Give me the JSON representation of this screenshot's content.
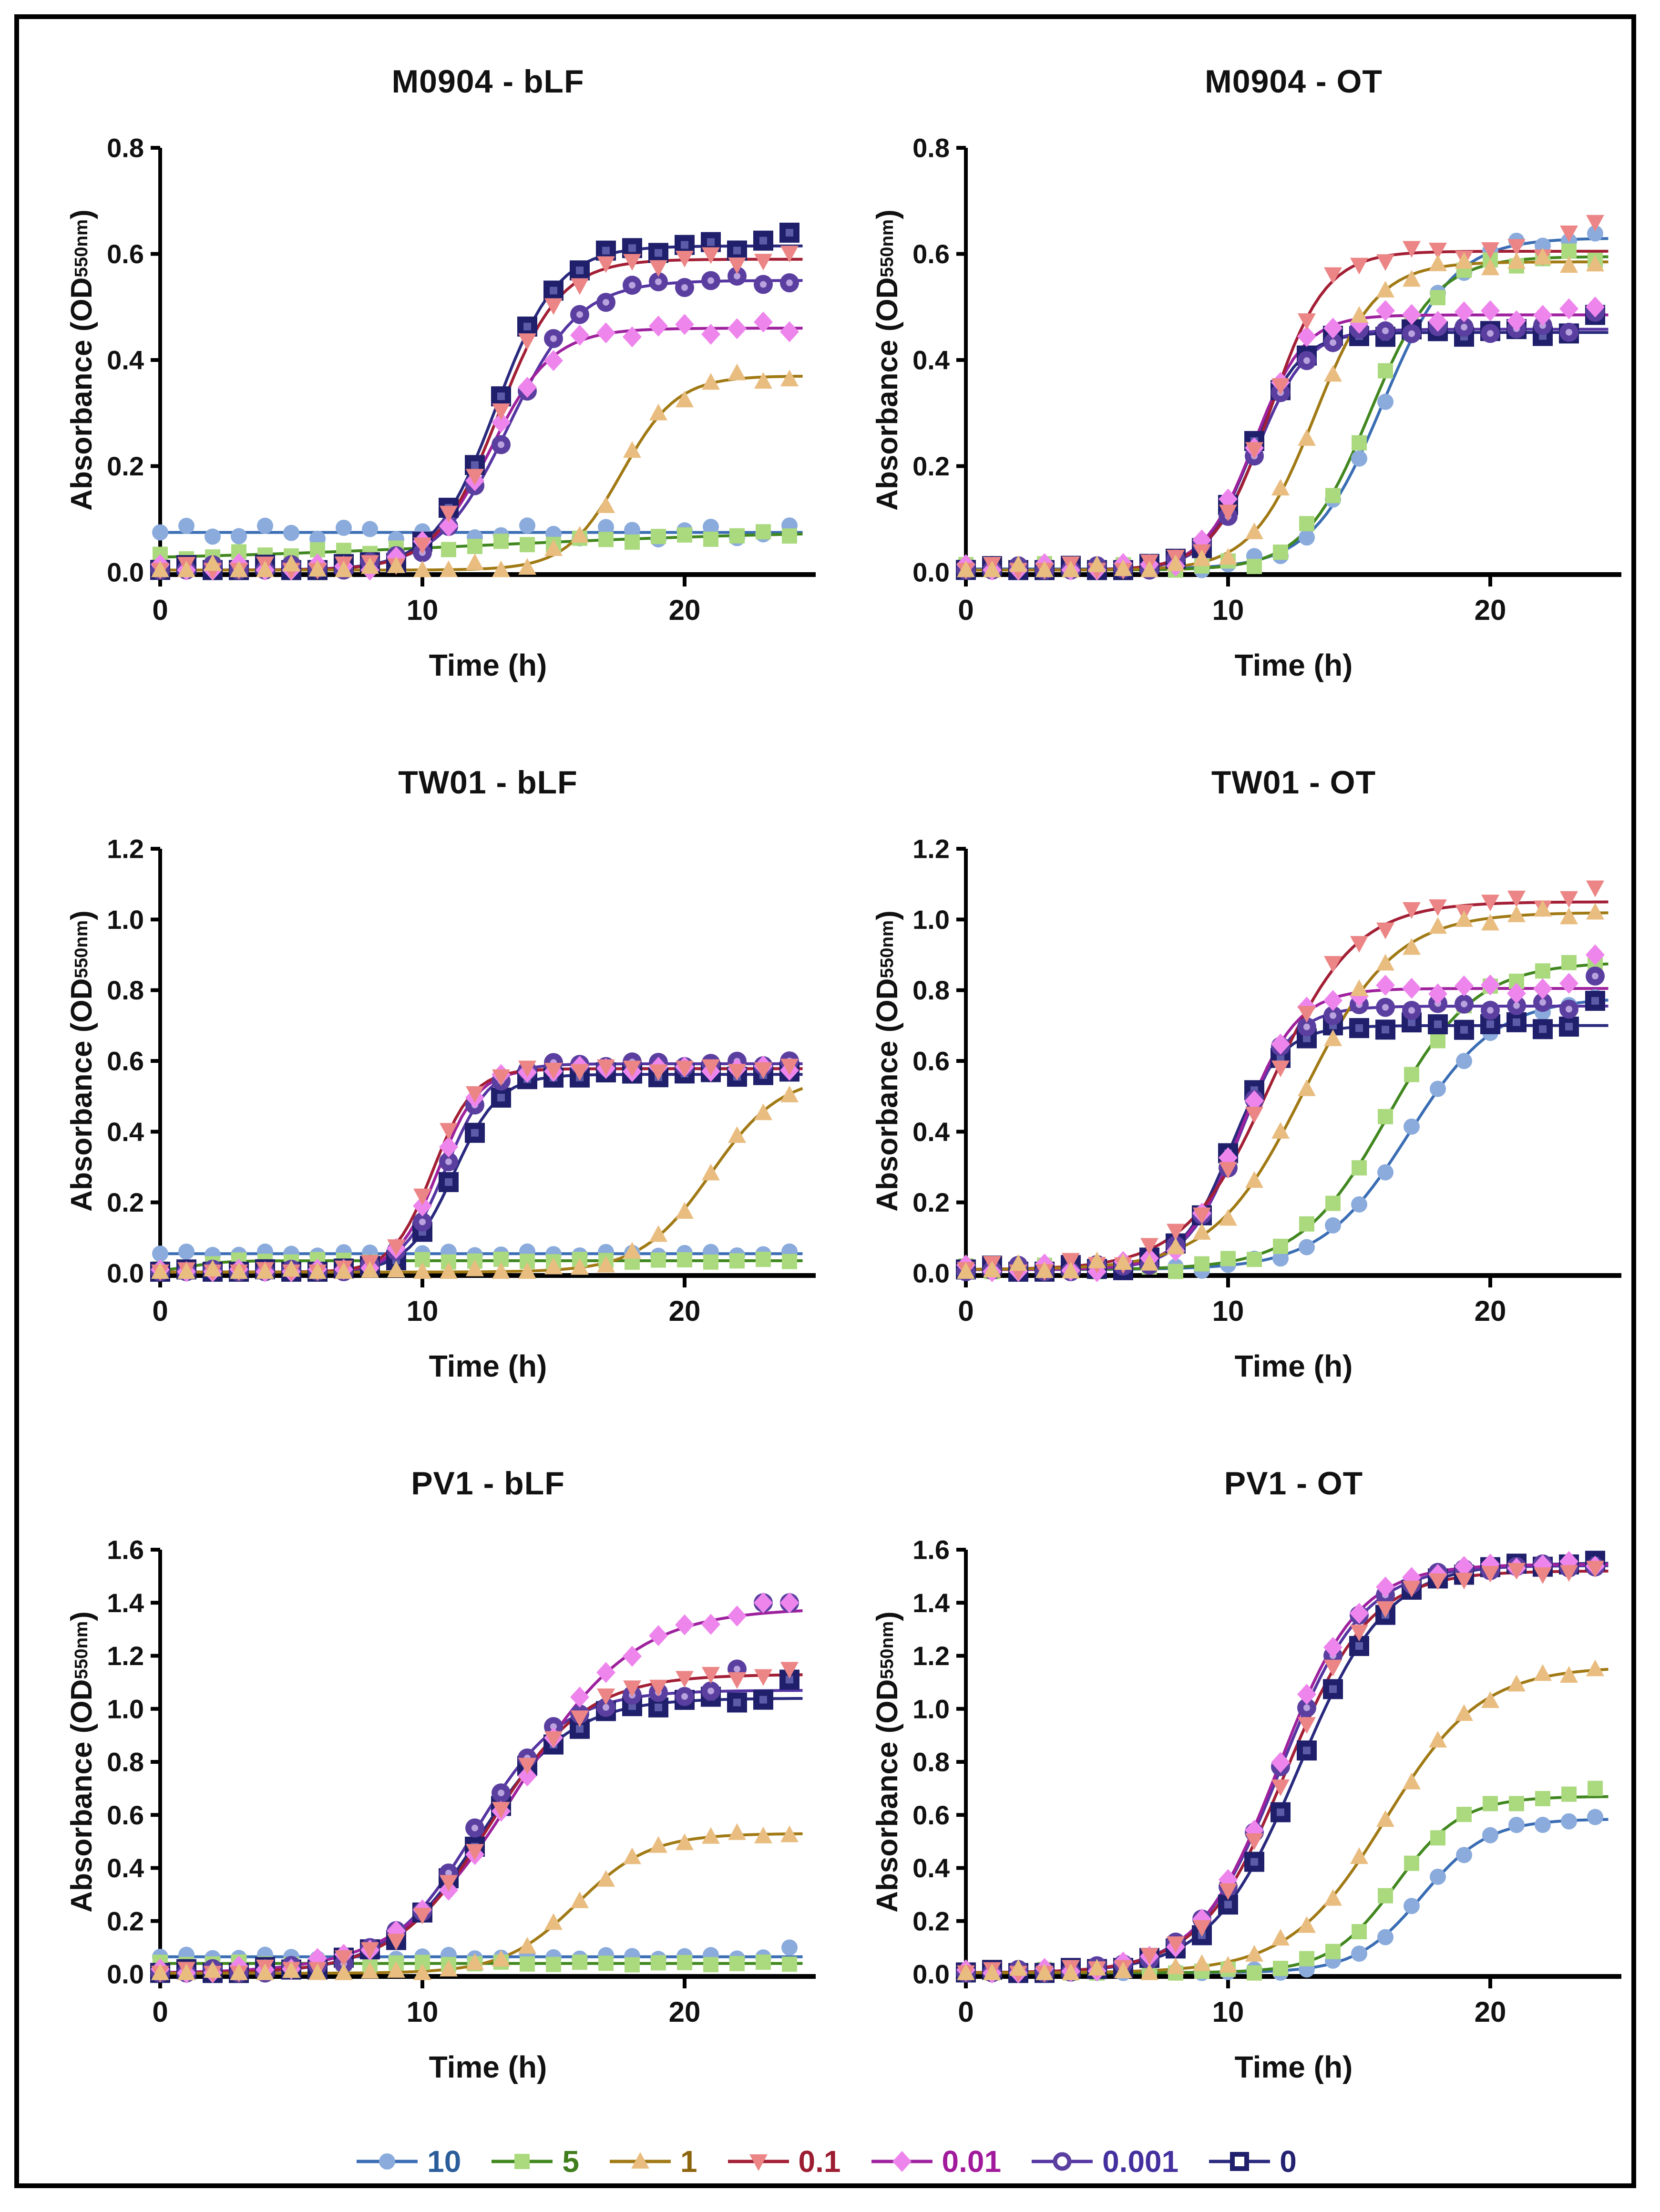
{
  "figure": {
    "background": "#ffffff",
    "border_color": "#000000"
  },
  "chart_data": {
    "type": "line",
    "description": "Growth curves: absorbance vs time, logistic fits with hourly data markers",
    "axes": {
      "x_label": "Time (h)",
      "y_label_prefix": "Absorbance (OD",
      "y_label_sub": "550nm",
      "y_label_suffix": ")",
      "x_ticks": [
        0,
        10,
        20
      ],
      "x_min": 0,
      "x_max": 25,
      "marker_interval_h": 1,
      "grid": "off",
      "legend_position": "bottom-center"
    },
    "series_defs": [
      {
        "id": "c10",
        "label": "10",
        "marker": "circle",
        "marker_color": "#8aabdc",
        "line_color": "#3a6db4",
        "text_color": "#2b5d9b"
      },
      {
        "id": "c5",
        "label": "5",
        "marker": "square",
        "marker_color": "#abd97e",
        "line_color": "#41871f",
        "text_color": "#3f7d1d"
      },
      {
        "id": "c1",
        "label": "1",
        "marker": "triangle-up",
        "marker_color": "#e9bd80",
        "line_color": "#a17a15",
        "text_color": "#8e650f"
      },
      {
        "id": "c01",
        "label": "0.1",
        "marker": "triangle-down",
        "marker_color": "#ec8585",
        "line_color": "#a31f35",
        "text_color": "#9c1c31"
      },
      {
        "id": "c001",
        "label": "0.01",
        "marker": "diamond",
        "marker_color": "#ee85ec",
        "line_color": "#9e219e",
        "text_color": "#a11a9b"
      },
      {
        "id": "c0001",
        "label": "0.001",
        "marker": "circle-open",
        "marker_color": "#5b3fa0",
        "marker_inner": "#b9a2dd",
        "line_color": "#5535a2",
        "text_color": "#44309e"
      },
      {
        "id": "c0",
        "label": "0",
        "marker": "square-open",
        "marker_color": "#1f1f6b",
        "marker_inner": "#5b5baa",
        "line_color": "#29297e",
        "text_color": "#232270"
      }
    ],
    "line_order": [
      "c10",
      "c5",
      "c0",
      "c0001",
      "c001",
      "c01",
      "c1"
    ],
    "marker_order": [
      "c10",
      "c5",
      "c0",
      "c0001",
      "c001",
      "c01",
      "c1"
    ],
    "logistic_note": "l = [y_start, y_plateau, t_half_h, rate_k, scatter]; y(t)=y0+(ymax-y0)/(1+exp(-k(t-t50))); k=0 means constant; ov = observed point overrides {hour: OD}",
    "charts": [
      {
        "title": "M0904 - bLF",
        "y_axis_max": 0.8,
        "y_tick_step": 0.2,
        "params": {
          "c10": {
            "l": [
              0.075,
              0.075,
              0,
              0,
              0.013
            ]
          },
          "c5": {
            "l": [
              0.02,
              0.08,
              12,
              0.15,
              0.006
            ]
          },
          "c1": {
            "l": [
              0.004,
              0.37,
              17.6,
              0.95,
              0.012
            ]
          },
          "c01": {
            "l": [
              0.004,
              0.59,
              12.9,
              0.85,
              0.012
            ]
          },
          "c001": {
            "l": [
              0.004,
              0.46,
              12.6,
              0.85,
              0.012
            ]
          },
          "c0001": {
            "l": [
              0.004,
              0.55,
              13.3,
              0.75,
              0.01
            ]
          },
          "c0": {
            "l": [
              0.004,
              0.615,
              12.8,
              0.85,
              0.01
            ],
            "ov": {
              "23": 0.625,
              "24": 0.64
            }
          }
        }
      },
      {
        "title": "M0904 - OT",
        "y_axis_max": 0.8,
        "y_tick_step": 0.2,
        "params": {
          "c10": {
            "l": [
              0.006,
              0.63,
              15.9,
              0.75,
              0.01
            ]
          },
          "c5": {
            "l": [
              0.004,
              0.595,
              15.4,
              0.8,
              0.012
            ]
          },
          "c1": {
            "l": [
              0.004,
              0.585,
              13.3,
              0.85,
              0.01
            ]
          },
          "c01": {
            "l": [
              0.004,
              0.605,
              11.6,
              0.95,
              0.012
            ],
            "ov": {
              "23": 0.64,
              "24": 0.66
            }
          },
          "c001": {
            "l": [
              0.004,
              0.485,
              11.0,
              1.05,
              0.012
            ],
            "ov": {
              "24": 0.5
            }
          },
          "c0001": {
            "l": [
              0.004,
              0.458,
              11.1,
              1.05,
              0.008
            ],
            "ov": {
              "24": 0.49
            }
          },
          "c0": {
            "l": [
              0.004,
              0.452,
              10.9,
              1.1,
              0.008
            ],
            "ov": {
              "24": 0.485
            }
          }
        }
      },
      {
        "title": "TW01 - bLF",
        "y_axis_max": 1.2,
        "y_tick_step": 0.2,
        "params": {
          "c10": {
            "l": [
              0.055,
              0.055,
              0,
              0,
              0.006
            ]
          },
          "c5": {
            "l": [
              0.004,
              0.035,
              1.2,
              1.5,
              0.004
            ]
          },
          "c1": {
            "l": [
              0.003,
              0.56,
              21.0,
              0.75,
              0.008
            ]
          },
          "c01": {
            "l": [
              0.003,
              0.578,
              10.4,
              1.3,
              0.008
            ]
          },
          "c001": {
            "l": [
              0.003,
              0.578,
              10.6,
              1.3,
              0.008
            ]
          },
          "c0001": {
            "l": [
              0.003,
              0.592,
              10.9,
              1.2,
              0.008
            ],
            "ov": {
              "24": 0.6
            }
          },
          "c0": {
            "l": [
              0.003,
              0.562,
              11.2,
              1.15,
              0.008
            ]
          }
        }
      },
      {
        "title": "TW01 - OT",
        "y_axis_max": 1.2,
        "y_tick_step": 0.2,
        "params": {
          "c10": {
            "l": [
              0.01,
              0.78,
              16.9,
              0.6,
              0.01
            ],
            "ov": {
              "24": 0.78
            }
          },
          "c5": {
            "l": [
              0.01,
              0.88,
              16.1,
              0.6,
              0.012
            ],
            "ov": {
              "24": 0.88
            }
          },
          "c1": {
            "l": [
              0.01,
              1.02,
              12.9,
              0.58,
              0.015
            ],
            "ov": {
              "24": 1.02
            }
          },
          "c01": {
            "l": [
              0.01,
              1.05,
              11.6,
              0.62,
              0.018
            ],
            "ov": {
              "23": 1.06,
              "24": 1.09
            }
          },
          "c001": {
            "l": [
              0.01,
              0.805,
              10.5,
              0.95,
              0.015
            ],
            "ov": {
              "24": 0.9
            }
          },
          "c0001": {
            "l": [
              0.01,
              0.755,
              10.4,
              1.0,
              0.012
            ],
            "ov": {
              "24": 0.84
            }
          },
          "c0": {
            "l": [
              0.01,
              0.7,
              10.1,
              1.05,
              0.012
            ],
            "ov": {
              "24": 0.77
            }
          }
        }
      },
      {
        "title": "PV1 - bLF",
        "y_axis_max": 1.6,
        "y_tick_step": 0.2,
        "params": {
          "c10": {
            "l": [
              0.065,
              0.065,
              0,
              0,
              0.008
            ],
            "ov": {
              "24": 0.1
            }
          },
          "c5": {
            "l": [
              0.04,
              0.04,
              0,
              0,
              0.005
            ]
          },
          "c1": {
            "l": [
              0.003,
              0.53,
              15.9,
              0.72,
              0.01
            ]
          },
          "c01": {
            "l": [
              0.003,
              1.13,
              12.6,
              0.55,
              0.015
            ],
            "ov": {
              "24": 1.15
            }
          },
          "c001": {
            "l": [
              0.003,
              1.38,
              13.6,
              0.45,
              0.015
            ],
            "ov": {
              "22": 1.35,
              "23": 1.4,
              "24": 1.4
            }
          },
          "c0001": {
            "l": [
              0.003,
              1.07,
              12.0,
              0.6,
              0.015
            ],
            "ov": {
              "22": 1.15,
              "23": 1.4,
              "24": 1.4
            }
          },
          "c0": {
            "l": [
              0.003,
              1.04,
              12.2,
              0.58,
              0.015
            ],
            "ov": {
              "24": 1.11
            }
          }
        }
      },
      {
        "title": "PV1 - OT",
        "y_axis_max": 1.6,
        "y_tick_step": 0.2,
        "params": {
          "c10": {
            "l": [
              0.005,
              0.585,
              17.4,
              0.8,
              0.01
            ]
          },
          "c5": {
            "l": [
              0.005,
              0.67,
              16.4,
              0.8,
              0.012
            ],
            "ov": {
              "24": 0.7
            }
          },
          "c1": {
            "l": [
              0.005,
              1.16,
              16.0,
              0.55,
              0.015
            ],
            "ov": {
              "24": 1.15
            }
          },
          "c01": {
            "l": [
              0.005,
              1.52,
              12.2,
              0.62,
              0.012
            ]
          },
          "c001": {
            "l": [
              0.005,
              1.545,
              11.9,
              0.66,
              0.012
            ]
          },
          "c0001": {
            "l": [
              0.005,
              1.54,
              12.0,
              0.64,
              0.01
            ]
          },
          "c0": {
            "l": [
              0.005,
              1.55,
              12.7,
              0.6,
              0.01
            ]
          }
        }
      }
    ]
  }
}
